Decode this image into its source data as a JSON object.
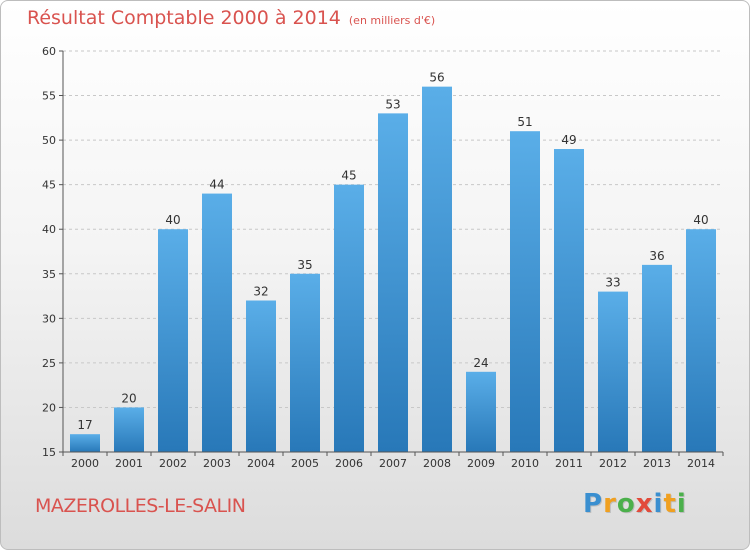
{
  "chart_data": {
    "type": "bar",
    "title": "Résultat Comptable 2000 à 2014",
    "subtitle": "(en milliers d'€)",
    "categories": [
      "2000",
      "2001",
      "2002",
      "2003",
      "2004",
      "2005",
      "2006",
      "2007",
      "2008",
      "2009",
      "2010",
      "2011",
      "2012",
      "2013",
      "2014"
    ],
    "values": [
      17,
      20,
      40,
      44,
      32,
      35,
      45,
      53,
      56,
      24,
      51,
      49,
      33,
      36,
      40
    ],
    "xlabel": "",
    "ylabel": "",
    "ylim": [
      15,
      60
    ],
    "yticks": [
      "15",
      "20",
      "25",
      "30",
      "35",
      "40",
      "45",
      "50",
      "55",
      "60"
    ],
    "grid": true,
    "legend": "none"
  },
  "footer": {
    "commune": "MAZEROLLES-LE-SALIN"
  },
  "logo": {
    "text": "Proxiti",
    "letters": [
      {
        "char": "P",
        "color": "#3a8fd0"
      },
      {
        "char": "r",
        "color": "#f0a020"
      },
      {
        "char": "o",
        "color": "#4bb04b"
      },
      {
        "char": "x",
        "color": "#e24b3b"
      },
      {
        "char": "i",
        "color": "#3a8fd0"
      },
      {
        "char": "t",
        "color": "#f0a020"
      },
      {
        "char": "i",
        "color": "#4bb04b"
      }
    ]
  },
  "colors": {
    "bar_top": "#5aaee8",
    "bar_bottom": "#2878b8",
    "accent_text": "#d9534f"
  }
}
